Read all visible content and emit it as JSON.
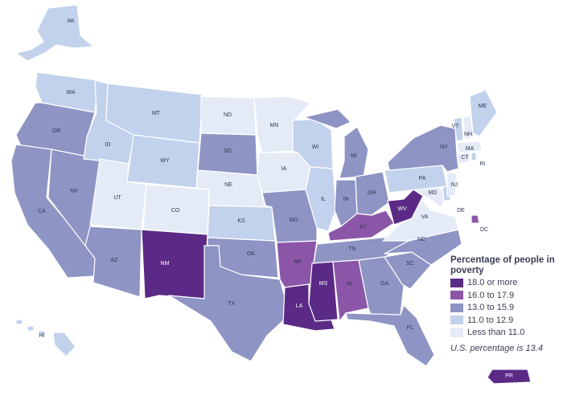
{
  "legend": {
    "title": "Percentage of people in poverty",
    "classes": [
      {
        "label": "18.0 or more",
        "color": "#5b2a86"
      },
      {
        "label": "16.0 to 17.9",
        "color": "#8b56a8"
      },
      {
        "label": "13.0 to 15.9",
        "color": "#8e94c4"
      },
      {
        "label": "11.0 to 12.9",
        "color": "#c2d2ec"
      },
      {
        "label": "Less than 11.0",
        "color": "#e4eaf6"
      }
    ],
    "note": "U.S. percentage is 13.4"
  },
  "states": [
    {
      "abbr": "AK",
      "cls": 3
    },
    {
      "abbr": "HI",
      "cls": 3
    },
    {
      "abbr": "WA",
      "cls": 3
    },
    {
      "abbr": "OR",
      "cls": 2
    },
    {
      "abbr": "CA",
      "cls": 2
    },
    {
      "abbr": "NV",
      "cls": 2
    },
    {
      "abbr": "ID",
      "cls": 3
    },
    {
      "abbr": "MT",
      "cls": 3
    },
    {
      "abbr": "WY",
      "cls": 3
    },
    {
      "abbr": "UT",
      "cls": 4
    },
    {
      "abbr": "CO",
      "cls": 4
    },
    {
      "abbr": "AZ",
      "cls": 2
    },
    {
      "abbr": "NM",
      "cls": 0
    },
    {
      "abbr": "ND",
      "cls": 4
    },
    {
      "abbr": "SD",
      "cls": 2
    },
    {
      "abbr": "NE",
      "cls": 4
    },
    {
      "abbr": "KS",
      "cls": 3
    },
    {
      "abbr": "OK",
      "cls": 2
    },
    {
      "abbr": "TX",
      "cls": 2
    },
    {
      "abbr": "MN",
      "cls": 4
    },
    {
      "abbr": "IA",
      "cls": 4
    },
    {
      "abbr": "MO",
      "cls": 2
    },
    {
      "abbr": "AR",
      "cls": 1
    },
    {
      "abbr": "LA",
      "cls": 0
    },
    {
      "abbr": "WI",
      "cls": 3
    },
    {
      "abbr": "IL",
      "cls": 3
    },
    {
      "abbr": "MI",
      "cls": 2
    },
    {
      "abbr": "IN",
      "cls": 2
    },
    {
      "abbr": "OH",
      "cls": 2
    },
    {
      "abbr": "KY",
      "cls": 1
    },
    {
      "abbr": "TN",
      "cls": 2
    },
    {
      "abbr": "MS",
      "cls": 0
    },
    {
      "abbr": "AL",
      "cls": 1
    },
    {
      "abbr": "GA",
      "cls": 2
    },
    {
      "abbr": "FL",
      "cls": 2
    },
    {
      "abbr": "SC",
      "cls": 2
    },
    {
      "abbr": "NC",
      "cls": 2
    },
    {
      "abbr": "VA",
      "cls": 4
    },
    {
      "abbr": "WV",
      "cls": 0
    },
    {
      "abbr": "MD",
      "cls": 4
    },
    {
      "abbr": "DE",
      "cls": 3
    },
    {
      "abbr": "NJ",
      "cls": 4
    },
    {
      "abbr": "PA",
      "cls": 3
    },
    {
      "abbr": "NY",
      "cls": 2
    },
    {
      "abbr": "CT",
      "cls": 4
    },
    {
      "abbr": "RI",
      "cls": 3
    },
    {
      "abbr": "MA",
      "cls": 4
    },
    {
      "abbr": "VT",
      "cls": 3
    },
    {
      "abbr": "NH",
      "cls": 4
    },
    {
      "abbr": "ME",
      "cls": 3
    },
    {
      "abbr": "DC",
      "cls": 1
    },
    {
      "abbr": "PR",
      "cls": 0
    }
  ]
}
